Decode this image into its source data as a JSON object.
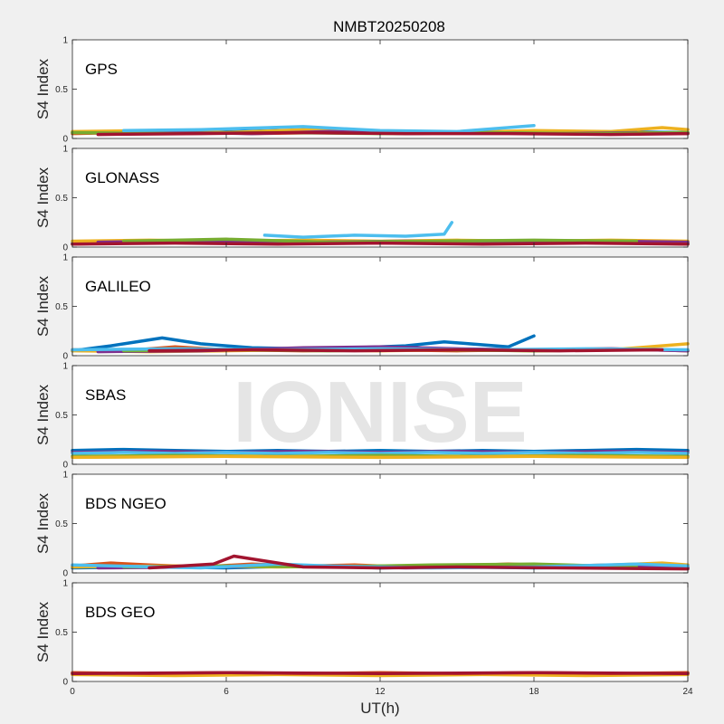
{
  "chart_data": {
    "type": "line",
    "title": "NMBT20250208",
    "xlabel": "UT(h)",
    "xlim": [
      0,
      24
    ],
    "xticks": [
      "0",
      "6",
      "12",
      "18",
      "24"
    ],
    "watermark": "IONISE",
    "colors": [
      "#0072BD",
      "#D95319",
      "#EDB120",
      "#7E2F8E",
      "#77AC30",
      "#4DBEEE",
      "#A2142F"
    ],
    "panels": [
      {
        "label": "GPS",
        "ylabel": "S4 Index",
        "ylim": [
          0,
          1
        ],
        "yticks": [
          "0",
          "0.5",
          "1"
        ],
        "series": [
          {
            "color": "#0072BD",
            "x": [
              0,
              3,
              5,
              8,
              11,
              14,
              17,
              20,
              24
            ],
            "y": [
              0.06,
              0.07,
              0.06,
              0.08,
              0.06,
              0.07,
              0.06,
              0.07,
              0.06
            ]
          },
          {
            "color": "#D95319",
            "x": [
              0,
              2,
              4,
              7,
              10,
              13,
              16,
              19,
              22,
              24
            ],
            "y": [
              0.05,
              0.06,
              0.07,
              0.05,
              0.06,
              0.05,
              0.06,
              0.05,
              0.06,
              0.05
            ]
          },
          {
            "color": "#EDB120",
            "x": [
              0,
              3,
              6,
              9,
              12,
              15,
              18,
              21,
              23,
              24
            ],
            "y": [
              0.07,
              0.08,
              0.06,
              0.09,
              0.07,
              0.06,
              0.08,
              0.07,
              0.11,
              0.09
            ]
          },
          {
            "color": "#7E2F8E",
            "x": [
              1,
              4,
              7,
              10,
              13,
              16,
              19,
              22
            ],
            "y": [
              0.05,
              0.06,
              0.05,
              0.07,
              0.05,
              0.06,
              0.05,
              0.06
            ]
          },
          {
            "color": "#77AC30",
            "x": [
              0,
              4,
              8,
              12,
              16,
              20,
              24
            ],
            "y": [
              0.06,
              0.05,
              0.06,
              0.05,
              0.06,
              0.05,
              0.06
            ]
          },
          {
            "color": "#4DBEEE",
            "x": [
              2,
              5,
              9,
              12,
              15,
              18
            ],
            "y": [
              0.08,
              0.09,
              0.12,
              0.08,
              0.07,
              0.13
            ]
          },
          {
            "color": "#A2142F",
            "x": [
              1,
              5,
              9,
              13,
              17,
              21,
              24
            ],
            "y": [
              0.04,
              0.05,
              0.06,
              0.05,
              0.05,
              0.04,
              0.05
            ]
          }
        ]
      },
      {
        "label": "GLONASS",
        "ylabel": "S4 Index",
        "ylim": [
          0,
          1
        ],
        "yticks": [
          "0",
          "0.5",
          "1"
        ],
        "series": [
          {
            "color": "#0072BD",
            "x": [
              0,
              4,
              8,
              12,
              16,
              20,
              24
            ],
            "y": [
              0.04,
              0.05,
              0.04,
              0.05,
              0.04,
              0.05,
              0.04
            ]
          },
          {
            "color": "#D95319",
            "x": [
              0,
              3,
              6,
              9,
              12,
              15,
              18,
              21,
              24
            ],
            "y": [
              0.03,
              0.05,
              0.04,
              0.06,
              0.04,
              0.05,
              0.04,
              0.05,
              0.03
            ]
          },
          {
            "color": "#EDB120",
            "x": [
              0,
              3,
              6,
              9,
              12,
              15,
              18,
              21,
              24
            ],
            "y": [
              0.06,
              0.07,
              0.06,
              0.07,
              0.06,
              0.07,
              0.06,
              0.07,
              0.06
            ]
          },
          {
            "color": "#7E2F8E",
            "x": [
              1,
              5,
              9,
              13,
              17,
              21,
              24
            ],
            "y": [
              0.05,
              0.06,
              0.05,
              0.06,
              0.05,
              0.06,
              0.05
            ]
          },
          {
            "color": "#77AC30",
            "x": [
              2,
              6,
              10,
              14,
              18,
              22
            ],
            "y": [
              0.06,
              0.08,
              0.05,
              0.06,
              0.07,
              0.06
            ]
          },
          {
            "color": "#4DBEEE",
            "x": [
              7.5,
              9,
              11,
              13,
              14.5,
              14.8
            ],
            "y": [
              0.12,
              0.1,
              0.12,
              0.11,
              0.13,
              0.25
            ]
          },
          {
            "color": "#A2142F",
            "x": [
              0,
              4,
              8,
              12,
              16,
              20,
              24
            ],
            "y": [
              0.03,
              0.04,
              0.03,
              0.04,
              0.03,
              0.04,
              0.03
            ]
          }
        ]
      },
      {
        "label": "GALILEO",
        "ylabel": "S4 Index",
        "ylim": [
          0,
          1
        ],
        "yticks": [
          "0",
          "0.5",
          "1"
        ],
        "series": [
          {
            "color": "#0072BD",
            "x": [
              0,
              1.5,
              3.5,
              5,
              7,
              9,
              11,
              13,
              14.5,
              17,
              18
            ],
            "y": [
              0.05,
              0.1,
              0.18,
              0.12,
              0.08,
              0.07,
              0.08,
              0.1,
              0.14,
              0.09,
              0.2
            ]
          },
          {
            "color": "#D95319",
            "x": [
              0,
              2,
              4,
              6,
              9,
              12,
              15,
              18,
              21,
              24
            ],
            "y": [
              0.06,
              0.05,
              0.09,
              0.06,
              0.05,
              0.06,
              0.05,
              0.06,
              0.07,
              0.05
            ]
          },
          {
            "color": "#EDB120",
            "x": [
              0,
              3,
              6,
              9,
              12,
              15,
              18,
              21,
              24
            ],
            "y": [
              0.05,
              0.04,
              0.05,
              0.06,
              0.05,
              0.06,
              0.05,
              0.06,
              0.12
            ]
          },
          {
            "color": "#7E2F8E",
            "x": [
              1,
              5,
              9,
              12,
              15,
              18,
              21,
              24
            ],
            "y": [
              0.04,
              0.05,
              0.08,
              0.09,
              0.07,
              0.06,
              0.07,
              0.05
            ]
          },
          {
            "color": "#77AC30",
            "x": [
              2,
              6,
              10,
              14,
              18,
              22
            ],
            "y": [
              0.05,
              0.06,
              0.05,
              0.06,
              0.05,
              0.06
            ]
          },
          {
            "color": "#4DBEEE",
            "x": [
              0,
              4,
              8,
              12,
              16,
              20,
              24
            ],
            "y": [
              0.06,
              0.07,
              0.06,
              0.07,
              0.06,
              0.07,
              0.06
            ]
          },
          {
            "color": "#A2142F",
            "x": [
              3,
              7,
              11,
              15,
              19,
              23
            ],
            "y": [
              0.05,
              0.06,
              0.05,
              0.06,
              0.05,
              0.06
            ]
          }
        ]
      },
      {
        "label": "SBAS",
        "ylabel": "S4 Index",
        "ylim": [
          0,
          1
        ],
        "yticks": [
          "0",
          "0.5",
          "1"
        ],
        "series": [
          {
            "color": "#0072BD",
            "x": [
              0,
              2,
              4,
              6,
              8,
              10,
              12,
              14,
              16,
              18,
              20,
              22,
              24
            ],
            "y": [
              0.14,
              0.15,
              0.14,
              0.13,
              0.14,
              0.13,
              0.14,
              0.13,
              0.14,
              0.13,
              0.14,
              0.15,
              0.14
            ]
          },
          {
            "color": "#7E2F8E",
            "x": [
              0,
              3,
              6,
              9,
              12,
              15,
              18,
              21,
              24
            ],
            "y": [
              0.12,
              0.13,
              0.12,
              0.13,
              0.12,
              0.13,
              0.12,
              0.13,
              0.12
            ]
          },
          {
            "color": "#4DBEEE",
            "x": [
              0,
              2,
              4,
              6,
              8,
              10,
              12,
              14,
              16,
              18,
              20,
              22,
              24
            ],
            "y": [
              0.11,
              0.12,
              0.11,
              0.12,
              0.11,
              0.12,
              0.11,
              0.12,
              0.11,
              0.12,
              0.11,
              0.12,
              0.11
            ]
          },
          {
            "color": "#77AC30",
            "x": [
              0,
              4,
              8,
              12,
              16,
              20,
              24
            ],
            "y": [
              0.08,
              0.09,
              0.08,
              0.09,
              0.08,
              0.09,
              0.08
            ]
          },
          {
            "color": "#EDB120",
            "x": [
              0,
              6,
              12,
              18,
              24
            ],
            "y": [
              0.07,
              0.08,
              0.07,
              0.08,
              0.07
            ]
          }
        ]
      },
      {
        "label": "BDS NGEO",
        "ylabel": "S4 Index",
        "ylim": [
          0,
          1
        ],
        "yticks": [
          "0",
          "0.5",
          "1"
        ],
        "series": [
          {
            "color": "#0072BD",
            "x": [
              0,
              3,
              6,
              9,
              12,
              15,
              18,
              21,
              24
            ],
            "y": [
              0.05,
              0.06,
              0.05,
              0.07,
              0.05,
              0.06,
              0.05,
              0.06,
              0.05
            ]
          },
          {
            "color": "#D95319",
            "x": [
              0,
              1.5,
              3,
              5,
              7,
              9,
              11,
              13,
              15,
              17,
              19,
              21,
              24
            ],
            "y": [
              0.07,
              0.1,
              0.08,
              0.06,
              0.09,
              0.07,
              0.08,
              0.06,
              0.07,
              0.09,
              0.07,
              0.08,
              0.06
            ]
          },
          {
            "color": "#EDB120",
            "x": [
              0,
              4,
              8,
              12,
              16,
              20,
              23,
              24
            ],
            "y": [
              0.06,
              0.07,
              0.06,
              0.07,
              0.06,
              0.07,
              0.1,
              0.08
            ]
          },
          {
            "color": "#7E2F8E",
            "x": [
              1,
              5,
              9,
              13,
              17,
              21,
              24
            ],
            "y": [
              0.05,
              0.06,
              0.07,
              0.05,
              0.06,
              0.07,
              0.05
            ]
          },
          {
            "color": "#77AC30",
            "x": [
              2,
              6,
              10,
              14,
              18,
              22
            ],
            "y": [
              0.06,
              0.07,
              0.06,
              0.08,
              0.09,
              0.06
            ]
          },
          {
            "color": "#4DBEEE",
            "x": [
              0,
              5,
              8,
              10,
              14,
              18,
              22,
              24
            ],
            "y": [
              0.08,
              0.05,
              0.09,
              0.07,
              0.05,
              0.06,
              0.09,
              0.07
            ]
          },
          {
            "color": "#A2142F",
            "x": [
              3,
              5.5,
              6.3,
              9,
              12,
              15,
              19,
              24
            ],
            "y": [
              0.05,
              0.09,
              0.17,
              0.06,
              0.05,
              0.06,
              0.05,
              0.04
            ]
          }
        ]
      },
      {
        "label": "BDS GEO",
        "ylabel": "S4 Index",
        "ylim": [
          0,
          1
        ],
        "yticks": [
          "0",
          "0.5",
          "1"
        ],
        "series": [
          {
            "color": "#EDB120",
            "x": [
              0,
              4,
              8,
              12,
              16,
              20,
              24
            ],
            "y": [
              0.07,
              0.06,
              0.07,
              0.06,
              0.07,
              0.06,
              0.07
            ]
          },
          {
            "color": "#D95319",
            "x": [
              0,
              3,
              6,
              9,
              12,
              15,
              18,
              21,
              24
            ],
            "y": [
              0.09,
              0.08,
              0.09,
              0.08,
              0.09,
              0.08,
              0.09,
              0.08,
              0.09
            ]
          },
          {
            "color": "#A2142F",
            "x": [
              0,
              6,
              12,
              18,
              24
            ],
            "y": [
              0.08,
              0.09,
              0.08,
              0.09,
              0.08
            ]
          }
        ]
      }
    ]
  }
}
